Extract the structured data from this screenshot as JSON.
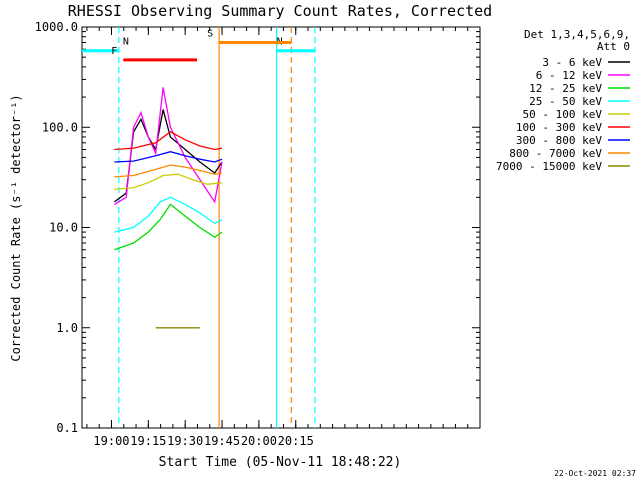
{
  "chart_data": {
    "type": "line",
    "title": "RHESSI Observing Summary Count Rates, Corrected",
    "xlabel": "Start Time (05-Nov-11 18:48:22)",
    "ylabel": "Corrected Count Rate (s⁻¹ detector⁻¹)",
    "yscale": "log",
    "ylim": [
      0.1,
      1000
    ],
    "xlim_minutes": [
      18.8,
      21.5
    ],
    "x_unit": "hours UT",
    "x_ticks": [
      {
        "value": 19.0,
        "label": "19:00"
      },
      {
        "value": 19.25,
        "label": "19:15"
      },
      {
        "value": 19.5,
        "label": "19:30"
      },
      {
        "value": 19.75,
        "label": "19:45"
      },
      {
        "value": 20.0,
        "label": "20:00"
      },
      {
        "value": 20.25,
        "label": "20:15"
      }
    ],
    "y_ticks": [
      {
        "value": 0.1,
        "label": "0.1"
      },
      {
        "value": 1,
        "label": "1.0"
      },
      {
        "value": 10,
        "label": "10.0"
      },
      {
        "value": 100,
        "label": "100.0"
      },
      {
        "value": 1000,
        "label": "1000.0"
      }
    ],
    "legend_header": [
      "Det 1,3,4,5,6,9,",
      "Att 0"
    ],
    "series": [
      {
        "name": "3 - 6 keV",
        "color": "#000000",
        "x": [
          19.02,
          19.1,
          19.15,
          19.2,
          19.25,
          19.3,
          19.35,
          19.4,
          19.5,
          19.6,
          19.7,
          19.75
        ],
        "y": [
          18,
          22,
          90,
          120,
          80,
          60,
          150,
          80,
          60,
          45,
          35,
          45
        ]
      },
      {
        "name": "6 - 12 keV",
        "color": "#ff00ff",
        "x": [
          19.02,
          19.1,
          19.15,
          19.2,
          19.25,
          19.3,
          19.35,
          19.4,
          19.5,
          19.6,
          19.7,
          19.75
        ],
        "y": [
          17,
          20,
          100,
          140,
          80,
          55,
          250,
          100,
          50,
          30,
          18,
          45
        ]
      },
      {
        "name": "12 - 25 keV",
        "color": "#00dd00",
        "x": [
          19.02,
          19.15,
          19.25,
          19.33,
          19.4,
          19.5,
          19.6,
          19.7,
          19.75
        ],
        "y": [
          6,
          7,
          9,
          12,
          17,
          13,
          10,
          8,
          9
        ]
      },
      {
        "name": "25 - 50 keV",
        "color": "#00ffff",
        "x": [
          19.02,
          19.15,
          19.25,
          19.33,
          19.4,
          19.5,
          19.6,
          19.7,
          19.75
        ],
        "y": [
          9,
          10,
          13,
          18,
          20,
          17,
          14,
          11,
          12
        ]
      },
      {
        "name": "50 - 100 keV",
        "color": "#cccc00",
        "x": [
          19.02,
          19.15,
          19.25,
          19.35,
          19.45,
          19.55,
          19.65,
          19.75
        ],
        "y": [
          24,
          25,
          28,
          33,
          34,
          30,
          27,
          28
        ]
      },
      {
        "name": "100 - 300 keV",
        "color": "#ff0000",
        "x": [
          19.02,
          19.15,
          19.3,
          19.4,
          19.5,
          19.6,
          19.7,
          19.75
        ],
        "y": [
          60,
          62,
          70,
          90,
          75,
          65,
          60,
          62
        ]
      },
      {
        "name": "300 - 800 keV",
        "color": "#0000ff",
        "x": [
          19.02,
          19.15,
          19.3,
          19.4,
          19.5,
          19.6,
          19.7,
          19.75
        ],
        "y": [
          45,
          46,
          52,
          57,
          52,
          48,
          45,
          48
        ]
      },
      {
        "name": "800 - 7000 keV",
        "color": "#ff8800",
        "x": [
          19.02,
          19.15,
          19.3,
          19.4,
          19.5,
          19.6,
          19.7,
          19.75
        ],
        "y": [
          32,
          33,
          38,
          42,
          40,
          37,
          34,
          35
        ]
      },
      {
        "name": "7000 - 15000 keV",
        "color": "#888800",
        "x": [
          19.3,
          19.35,
          19.4,
          19.45,
          19.5,
          19.55,
          19.6
        ],
        "y": [
          1,
          1,
          1,
          1,
          1,
          1,
          1
        ]
      }
    ],
    "annotations": {
      "flags": [
        {
          "label": "N",
          "color": "#00ffff",
          "x_start": 18.8,
          "x_end": 19.05,
          "level": 580
        },
        {
          "label": "N",
          "color": "#00ffff",
          "x_start": 20.12,
          "x_end": 20.38,
          "level": 580
        },
        {
          "label": "F",
          "color": "#ff0000",
          "x_start": 19.08,
          "x_end": 19.58,
          "level": 470
        },
        {
          "label": "S",
          "color": "#ff8800",
          "x_start": 19.73,
          "x_end": 20.22,
          "level": 700
        }
      ],
      "vertical_lines": [
        {
          "x": 19.05,
          "color": "#00ffff",
          "style": "dashed"
        },
        {
          "x": 19.73,
          "color": "#ff8800",
          "style": "solid"
        },
        {
          "x": 20.12,
          "color": "#00ffff",
          "style": "solid"
        },
        {
          "x": 20.22,
          "color": "#ff8800",
          "style": "dashed"
        },
        {
          "x": 20.38,
          "color": "#00ffff",
          "style": "dashed"
        }
      ]
    },
    "footer_timestamp": "22-Oct-2021 02:37"
  }
}
